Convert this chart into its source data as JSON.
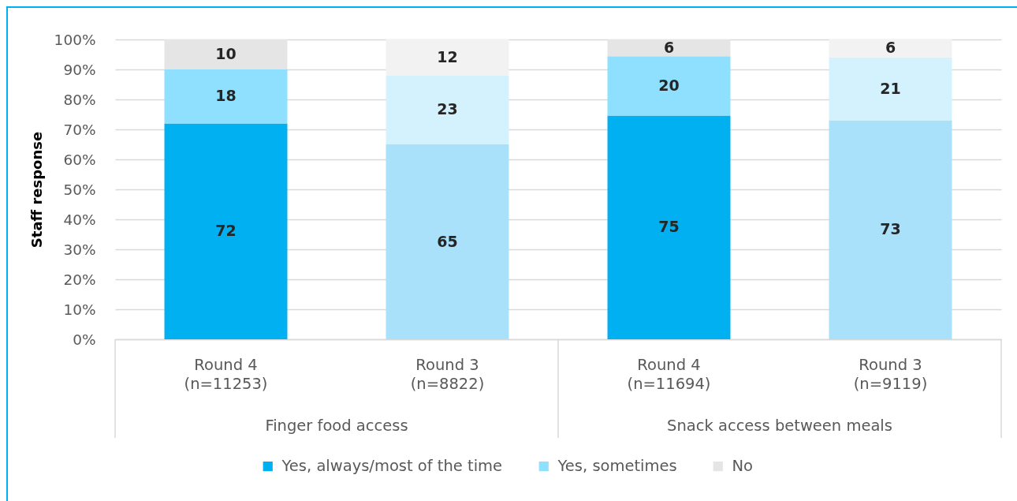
{
  "chart_data": {
    "type": "bar",
    "stacked": true,
    "ylabel": "Staff response",
    "categories": [
      "Round 4\n(n=11253)",
      "Round 3\n(n=8822)",
      "Round 4\n(n=11694)",
      "Round 3\n(n=9119)"
    ],
    "series": [
      {
        "name": "Yes, always/most of the time",
        "color": "#00b0f0",
        "colors": [
          "#00b0f0",
          "#a8e1f9",
          "#00b0f0",
          "#a8e1f9"
        ],
        "values": [
          72,
          65,
          74.6,
          73
        ],
        "value_labels": [
          "72",
          "65",
          "75",
          "73"
        ]
      },
      {
        "name": "Yes, sometimes",
        "color": "#8fe0fe",
        "colors": [
          "#8fe0fe",
          "#d4f2fd",
          "#8fe0fe",
          "#d4f2fd"
        ],
        "values": [
          18,
          23,
          19.8,
          21
        ],
        "value_labels": [
          "18",
          "23",
          "20",
          "21"
        ]
      },
      {
        "name": "No",
        "color": "#e5e5e5",
        "colors": [
          "#e5e5e5",
          "#f2f2f2",
          "#e5e5e5",
          "#f2f2f2"
        ],
        "values": [
          10,
          12,
          5.6,
          6
        ],
        "value_labels": [
          "10",
          "12",
          "6",
          "6"
        ]
      }
    ],
    "ylim": [
      0,
      100
    ],
    "yticks": [
      {
        "value": 0,
        "label": "0%"
      },
      {
        "value": 10,
        "label": "10%"
      },
      {
        "value": 20,
        "label": "20%"
      },
      {
        "value": 30,
        "label": "30%"
      },
      {
        "value": 40,
        "label": "40%"
      },
      {
        "value": 50,
        "label": "50%"
      },
      {
        "value": 60,
        "label": "60%"
      },
      {
        "value": 70,
        "label": "70%"
      },
      {
        "value": 80,
        "label": "80%"
      },
      {
        "value": 90,
        "label": "90%"
      },
      {
        "value": 100,
        "label": "100%"
      }
    ],
    "grid": "y",
    "legend": "bottom",
    "annotations": [
      "Finger food access",
      "Snack access between meals"
    ]
  }
}
